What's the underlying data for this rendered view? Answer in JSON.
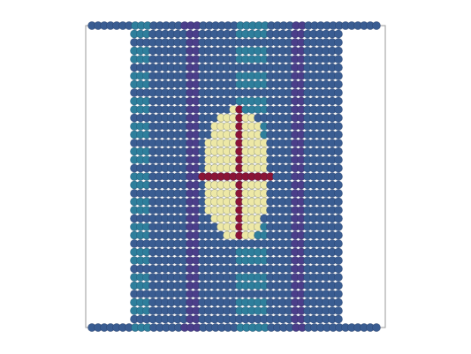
{
  "scene": {
    "type": "bead-lattice-rendering",
    "row_count": 37,
    "colors": {
      "background": "#ffffff",
      "frame": "#9a9a9a",
      "bead_blue": "#3a5d92",
      "bead_teal": "#2e7f9c",
      "bead_purple": "#4b3e8a",
      "bead_cream": "#ede8a6",
      "bead_crimson": "#8a1436",
      "bead_outline": "#1d2c4c"
    },
    "band_pattern": [
      "blue",
      "teal",
      "blue",
      "purple",
      "blue",
      "teal",
      "blue",
      "purple",
      "blue"
    ],
    "inclusion": {
      "shape": "ellipse",
      "color_name": "cream",
      "cross_color_name": "crimson"
    }
  }
}
